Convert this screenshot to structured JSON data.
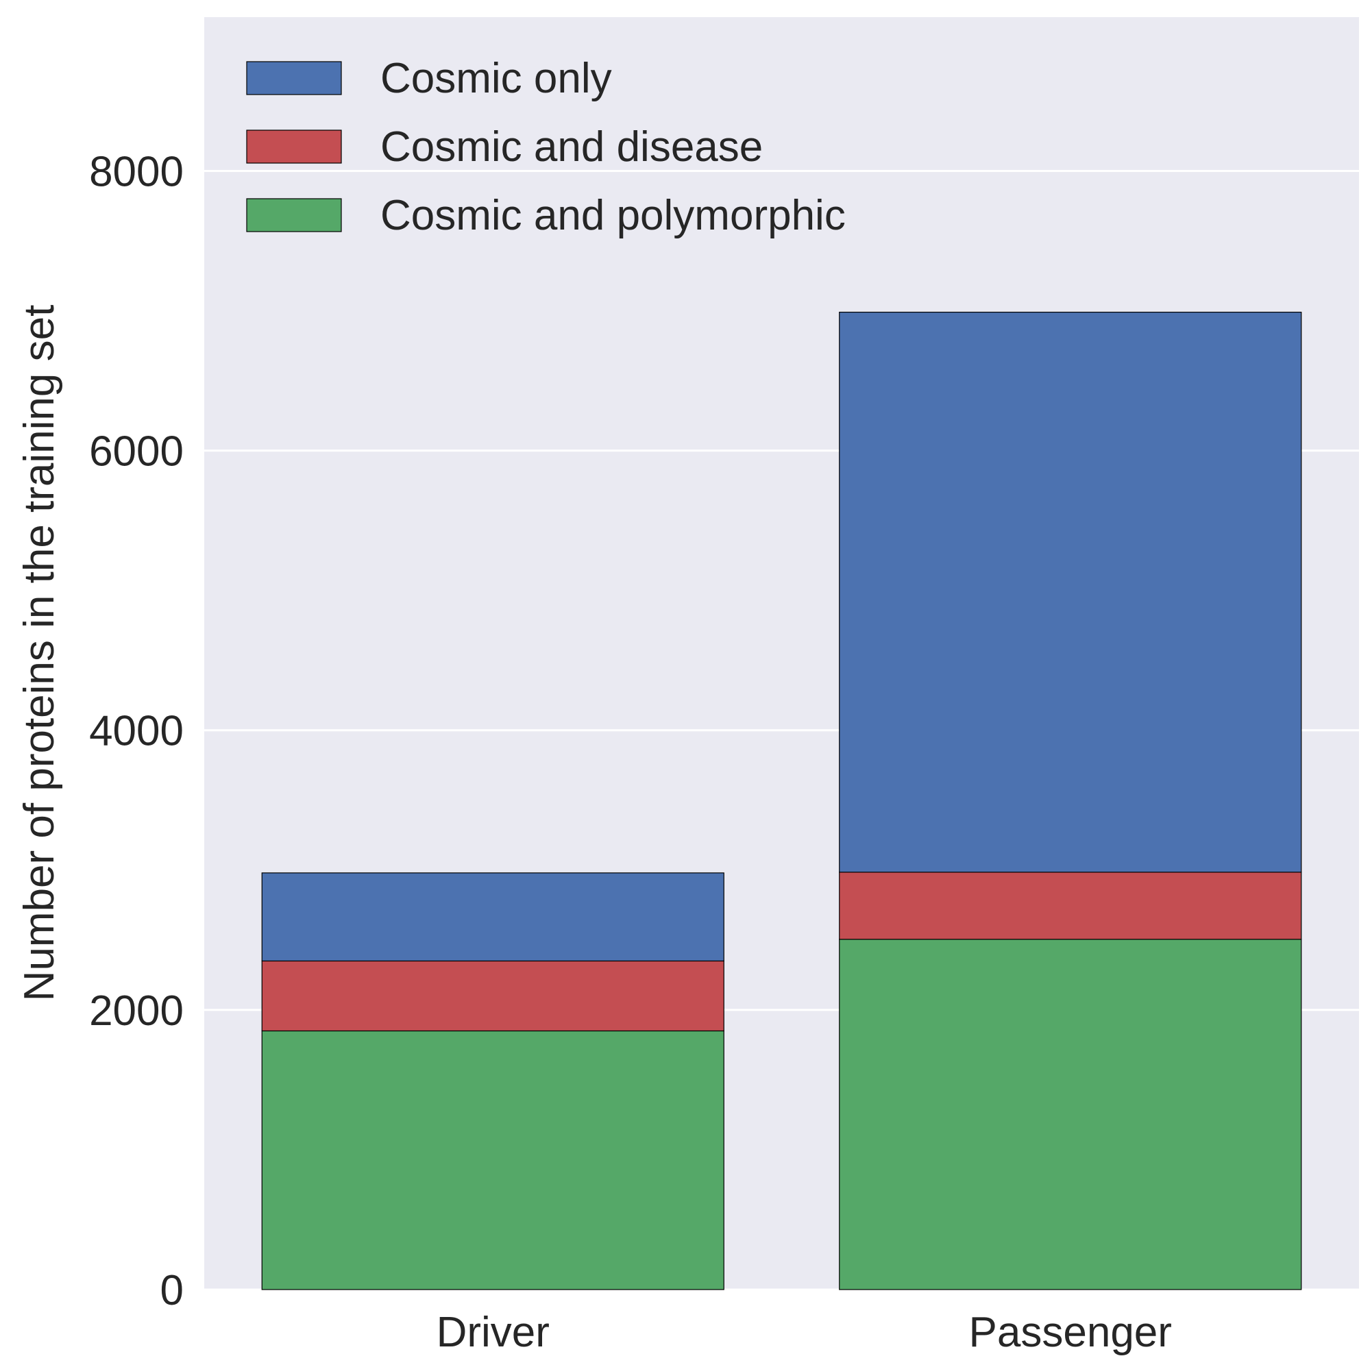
{
  "chart_data": {
    "type": "bar",
    "stacked": true,
    "categories": [
      "Driver",
      "Passenger"
    ],
    "series": [
      {
        "name": "Cosmic and polymorphic",
        "values": [
          1850,
          2505
        ],
        "color": "#55a868"
      },
      {
        "name": "Cosmic and disease",
        "values": [
          500,
          480
        ],
        "color": "#c44e52"
      },
      {
        "name": "Cosmic only",
        "values": [
          630,
          4005
        ],
        "color": "#4c72b0"
      }
    ],
    "legend_order": [
      "Cosmic only",
      "Cosmic and disease",
      "Cosmic and polymorphic"
    ],
    "legend_position": "top-left",
    "title": "",
    "xlabel": "",
    "ylabel": "Number of proteins in the training set",
    "ylim": [
      0,
      9100
    ],
    "yticks": [
      0,
      2000,
      4000,
      6000,
      8000
    ],
    "grid": true,
    "background": "#eaeaf2",
    "gridline_color": "#ffffff"
  }
}
